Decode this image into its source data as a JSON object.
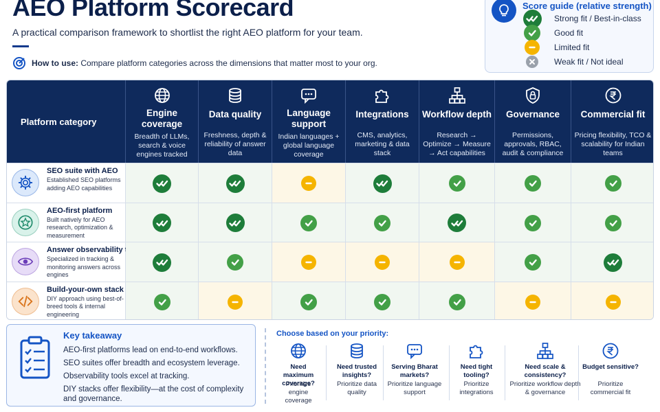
{
  "header": {
    "title": "AEO Platform Scorecard",
    "subtitle": "A practical comparison framework to shortlist the right AEO platform for your team.",
    "howto_label": "How to use:",
    "howto_text": "Compare platform categories across the dimensions that matter most to your org."
  },
  "score_guide": {
    "title": "Score guide (relative strength)",
    "items": [
      {
        "level": "strong",
        "label": "Strong fit / Best-in-class"
      },
      {
        "level": "good",
        "label": "Good fit"
      },
      {
        "level": "limited",
        "label": "Limited fit"
      },
      {
        "level": "weak",
        "label": "Weak fit / Not ideal"
      }
    ]
  },
  "table": {
    "first_header": "Platform category",
    "columns": [
      {
        "icon": "globe-icon",
        "name": "Engine coverage",
        "desc": "Breadth of LLMs, search & voice engines tracked"
      },
      {
        "icon": "database-icon",
        "name": "Data quality",
        "desc": "Freshness, depth & reliability of answer data"
      },
      {
        "icon": "chat-icon",
        "name": "Language support",
        "desc": "Indian languages + global language coverage"
      },
      {
        "icon": "puzzle-icon",
        "name": "Integrations",
        "desc": "CMS, analytics, marketing & data stack"
      },
      {
        "icon": "org-chart-icon",
        "name": "Workflow depth",
        "desc": "Research → Optimize → Measure → Act capabilities"
      },
      {
        "icon": "shield-icon",
        "name": "Governance",
        "desc": "Permissions, approvals, RBAC, audit & compliance"
      },
      {
        "icon": "rupee-icon",
        "name": "Commercial fit",
        "desc": "Pricing flexibility, TCO & scalability for Indian teams"
      }
    ],
    "rows": [
      {
        "icon": "gear-icon",
        "name": "SEO suite with AEO",
        "desc": "Established SEO platforms adding AEO capabilities",
        "scores": [
          "strong",
          "strong",
          "limited",
          "strong",
          "good",
          "good",
          "good"
        ]
      },
      {
        "icon": "star-icon",
        "name": "AEO-first platform",
        "desc": "Built natively for AEO research, optimization & measurement",
        "scores": [
          "strong",
          "strong",
          "good",
          "good",
          "strong",
          "good",
          "good"
        ]
      },
      {
        "icon": "eye-icon",
        "name": "Answer observability tool",
        "desc": "Specialized in tracking & monitoring answers across engines",
        "scores": [
          "strong",
          "good",
          "limited",
          "limited",
          "limited",
          "good",
          "strong"
        ]
      },
      {
        "icon": "code-icon",
        "name": "Build-your-own stack",
        "desc": "DIY approach using best-of-breed tools & internal engineering",
        "scores": [
          "good",
          "limited",
          "good",
          "good",
          "good",
          "limited",
          "limited"
        ]
      }
    ]
  },
  "takeaway": {
    "title": "Key takeaway",
    "lines": [
      "AEO-first platforms lead on end-to-end workflows.",
      "SEO suites offer breadth and ecosystem leverage.",
      "Observability tools excel at tracking.",
      "DIY stacks offer flexibility—at the cost of complexity and governance."
    ]
  },
  "priority": {
    "title": "Choose based on your priority:",
    "items": [
      {
        "icon": "globe-icon",
        "question": "Need maximum coverage?",
        "answer": "Prioritize engine coverage"
      },
      {
        "icon": "database-icon",
        "question": "Need trusted insights?",
        "answer": "Prioritize data quality"
      },
      {
        "icon": "chat-icon",
        "question": "Serving Bharat markets?",
        "answer": "Prioritize language support"
      },
      {
        "icon": "puzzle-icon",
        "question": "Need tight tooling?",
        "answer": "Prioritize integrations"
      },
      {
        "icon": "org-chart-icon",
        "question": "Need scale & consistency?",
        "answer": "Prioritize workflow depth & governance"
      },
      {
        "icon": "rupee-icon",
        "question": "Budget sensitive?",
        "answer": "Prioritize commercial fit"
      }
    ]
  },
  "colors": {
    "navy": "#0f2a5c",
    "brand_blue": "#1454c4",
    "strong": "#1e7d3a",
    "good": "#43a047",
    "limited": "#f5b400",
    "weak": "#9aa1ab"
  }
}
